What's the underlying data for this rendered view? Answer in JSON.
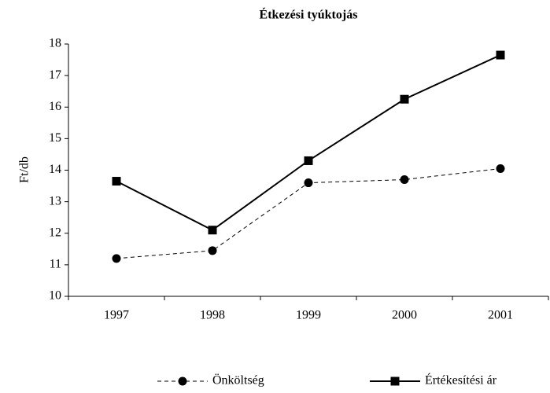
{
  "chart_data": {
    "type": "line",
    "title": "Étkezési tyúktojás",
    "y_label": "Ft/db",
    "categories": [
      "1997",
      "1998",
      "1999",
      "2000",
      "2001"
    ],
    "series": [
      {
        "name": "Önköltség",
        "color": "#000000",
        "dash": true,
        "marker": "circle",
        "values": [
          11.2,
          11.45,
          13.6,
          13.7,
          14.05
        ]
      },
      {
        "name": "Értékesítési ár",
        "color": "#000000",
        "dash": false,
        "marker": "square",
        "values": [
          13.65,
          12.1,
          14.3,
          16.25,
          17.65
        ]
      }
    ],
    "ylim": [
      10,
      18
    ],
    "yticks": [
      10,
      11,
      12,
      13,
      14,
      15,
      16,
      17,
      18
    ],
    "grid": false,
    "legend": "bottom"
  }
}
